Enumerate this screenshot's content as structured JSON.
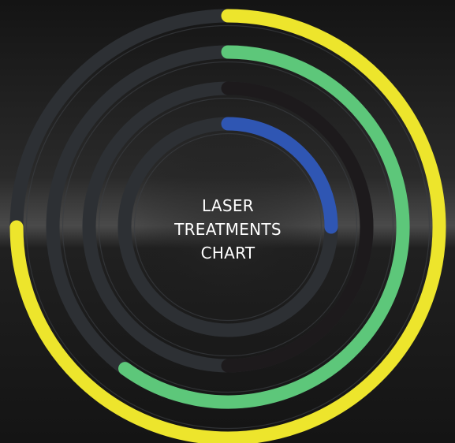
{
  "chart_data": {
    "type": "radial",
    "title": "LASER TREATMENTS CHART",
    "values": [
      75,
      60,
      50,
      25
    ],
    "colors": [
      "#ede52c",
      "#5dc77a",
      "#1d1a1c",
      "#2f56b3"
    ],
    "ylim": [
      0,
      100
    ]
  }
}
